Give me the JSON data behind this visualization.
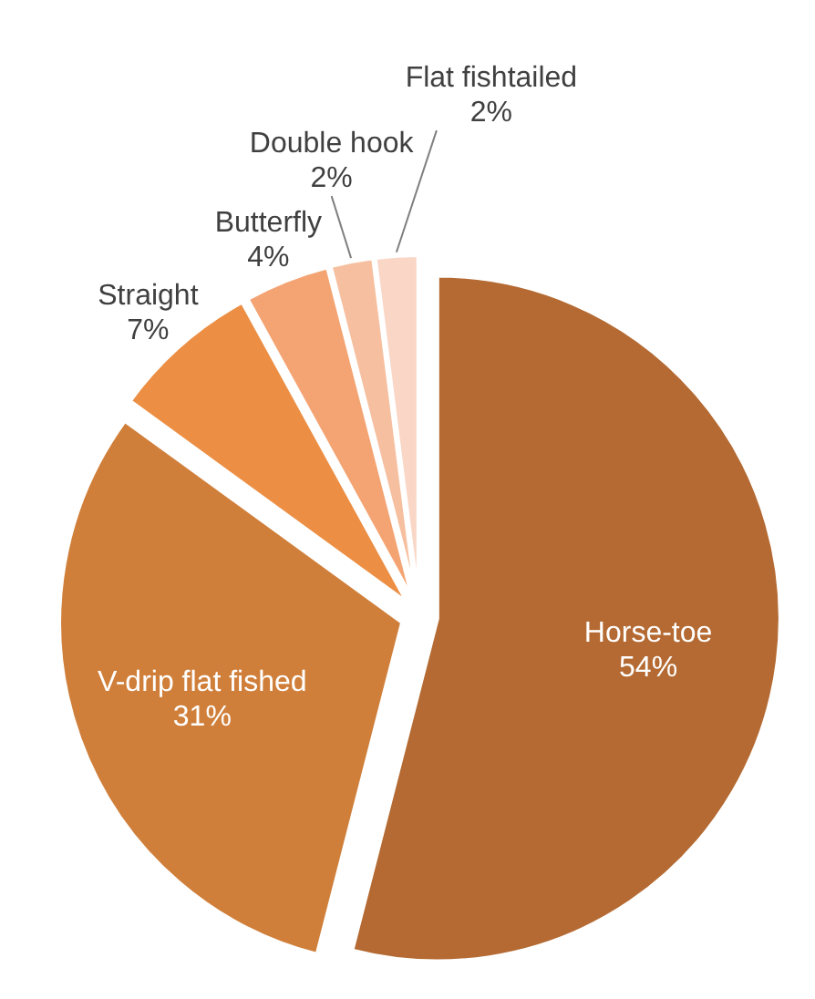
{
  "chart_data": {
    "type": "pie",
    "categories": [
      "Horse-toe",
      "V-drip flat fished",
      "Straight",
      "Butterfly",
      "Double hook",
      "Flat fishtailed"
    ],
    "values": [
      54,
      31,
      7,
      4,
      2,
      2
    ],
    "colors": [
      "#b46a32",
      "#d07f3a",
      "#ec8f44",
      "#f4a472",
      "#f6bf9f",
      "#f9d6c6"
    ],
    "value_labels": [
      "54%",
      "31%",
      "7%",
      "4%",
      "2%",
      "2%"
    ]
  }
}
